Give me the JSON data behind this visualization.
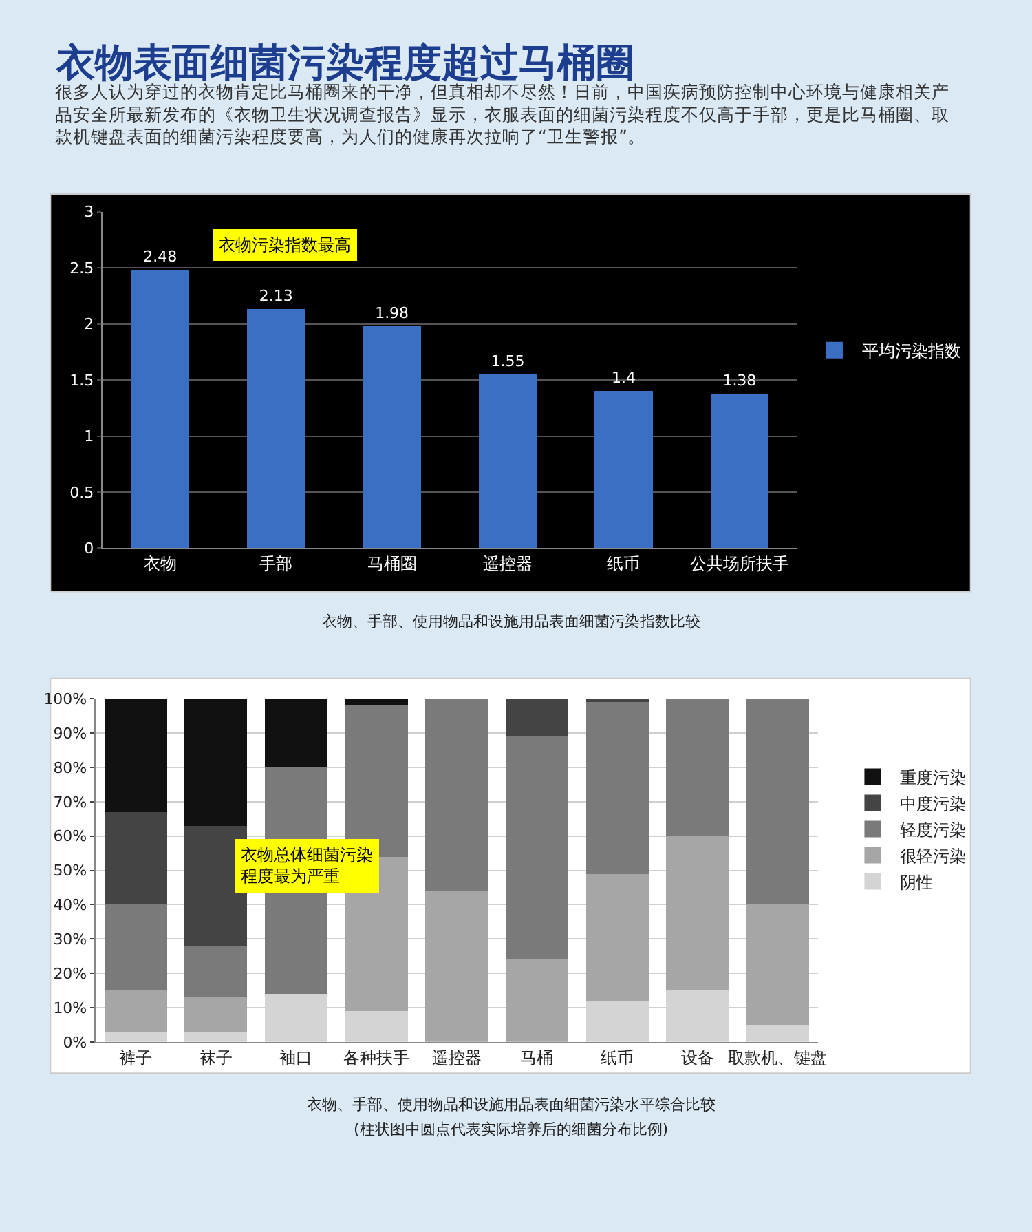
{
  "chart_data": [
    {
      "type": "bar",
      "title": "衣物表面细菌污染程度超过马桶圈",
      "subtitle": "很多人认为穿过的衣物肯定比马桶圈来的干净，但真相却不尽然！日前，中国疾病预防控制中心环境与健康相关产品安全所最新发布的《衣物卫生状况调查报告》显示，衣服表面的细菌污染程度不仅高于手部，更是比马桶圈、取款机键盘表面的细菌污染程度要高，为人们的健康再次拉响了“卫生警报”。",
      "categories": [
        "衣物",
        "手部",
        "马桶圈",
        "遥控器",
        "纸币",
        "公共场所扶手"
      ],
      "series": [
        {
          "name": "平均污染指数",
          "color": "#3a6fc4",
          "values": [
            2.48,
            2.13,
            1.98,
            1.55,
            1.4,
            1.38
          ]
        }
      ],
      "ylim": [
        0,
        3
      ],
      "yticks": [
        0,
        0.5,
        1,
        1.5,
        2,
        2.5,
        3
      ],
      "grid": "y",
      "legend": "right",
      "data_labels": true,
      "annotations": [
        "衣物污染指数最高",
        "衣物、手部、使用物品和设施用品表面细菌污染指数比较"
      ]
    },
    {
      "type": "bar",
      "stacked": true,
      "categories": [
        "裤子",
        "袜子",
        "袖口",
        "各种扶手",
        "遥控器",
        "马桶",
        "纸币",
        "设备",
        "取款机、键盘"
      ],
      "series": [
        {
          "name": "阴性",
          "color": "#d4d4d4",
          "values": [
            3,
            3,
            14,
            9,
            0,
            0,
            12,
            15,
            5
          ]
        },
        {
          "name": "很轻污染",
          "color": "#a6a6a6",
          "values": [
            12,
            10,
            0,
            45,
            44,
            24,
            37,
            45,
            35
          ]
        },
        {
          "name": "轻度污染",
          "color": "#7a7a7a",
          "values": [
            25,
            15,
            66,
            44,
            56,
            65,
            50,
            40,
            60
          ]
        },
        {
          "name": "中度污染",
          "color": "#444444",
          "values": [
            27,
            35,
            0,
            0,
            0,
            11,
            1,
            0,
            0
          ]
        },
        {
          "name": "重度污染",
          "color": "#111111",
          "values": [
            33,
            37,
            20,
            2,
            0,
            0,
            0,
            0,
            0
          ]
        }
      ],
      "ylim": [
        0,
        100
      ],
      "yticks": [
        {
          "value": 0,
          "label": "0%"
        },
        {
          "value": 10,
          "label": "10%"
        },
        {
          "value": 20,
          "label": "20%"
        },
        {
          "value": 30,
          "label": "30%"
        },
        {
          "value": 40,
          "label": "40%"
        },
        {
          "value": 50,
          "label": "50%"
        },
        {
          "value": 60,
          "label": "60%"
        },
        {
          "value": 70,
          "label": "70%"
        },
        {
          "value": 80,
          "label": "80%"
        },
        {
          "value": 90,
          "label": "90%"
        },
        {
          "value": 100,
          "label": "100%"
        }
      ],
      "grid": "y",
      "legend": "right",
      "annotations": [
        "衣物总体细菌污染程度最为严重",
        "衣物、手部、使用物品和设施用品表面细菌污染水平综合比较",
        "(柱状图中圆点代表实际培养后的细菌分布比例)"
      ]
    }
  ]
}
